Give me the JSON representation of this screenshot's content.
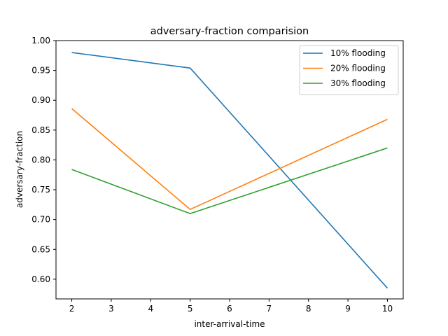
{
  "chart_data": {
    "type": "line",
    "title": "adversary-fraction comparision",
    "xlabel": "inter-arrival-time",
    "ylabel": "adversary-fraction",
    "x": [
      2,
      5,
      10
    ],
    "xlim": [
      1.6,
      10.4
    ],
    "ylim": [
      0.567,
      1.0
    ],
    "xticks": [
      2,
      3,
      4,
      5,
      6,
      7,
      8,
      9,
      10
    ],
    "yticks": [
      "0.60",
      "0.65",
      "0.70",
      "0.75",
      "0.80",
      "0.85",
      "0.90",
      "0.95",
      "1.00"
    ],
    "grid": false,
    "legend_position": "top-right",
    "series": [
      {
        "name": "10% flooding",
        "color": "#1f77b4",
        "values": [
          0.98,
          0.954,
          0.585
        ]
      },
      {
        "name": "20% flooding",
        "color": "#ff7f0e",
        "values": [
          0.886,
          0.717,
          0.868
        ]
      },
      {
        "name": "30% flooding",
        "color": "#2ca02c",
        "values": [
          0.784,
          0.71,
          0.82
        ]
      }
    ]
  }
}
